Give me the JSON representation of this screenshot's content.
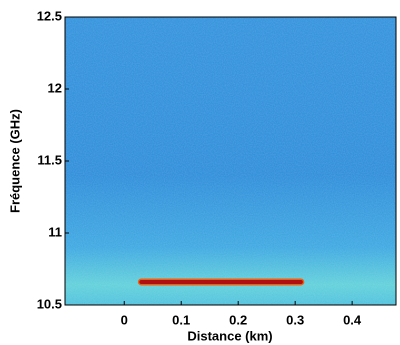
{
  "chart_data": {
    "type": "heatmap",
    "xlabel": "Distance (km)",
    "ylabel": "Fréquence (GHz)",
    "xlim": [
      -0.104,
      0.477
    ],
    "xticks": [
      0,
      0.1,
      0.2,
      0.3,
      0.4
    ],
    "ylim": [
      10.5,
      12.5
    ],
    "yticks": [
      10.5,
      11,
      11.5,
      12,
      12.5
    ],
    "x": [
      0.03,
      0.31
    ],
    "values": [
      10.66,
      10.66
    ],
    "color": "#b01010"
  }
}
